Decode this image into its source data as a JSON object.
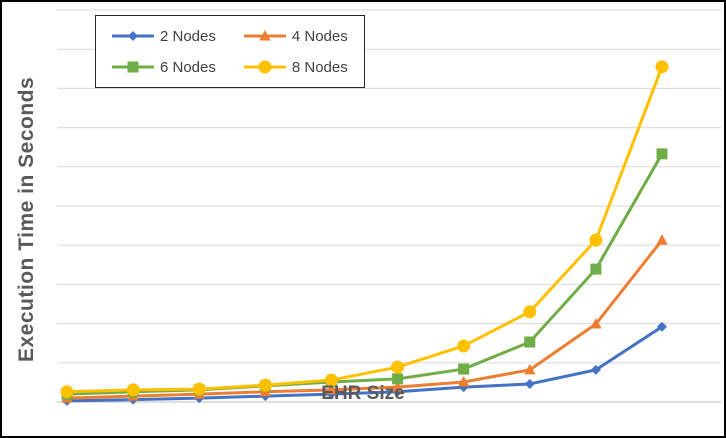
{
  "chart": {
    "ylabel": "Execution Time in Seconds",
    "xlabel": "EHR Size",
    "background": "#ffffff",
    "border_color": "#000000",
    "gridline_color": "#d9d9d9",
    "axisline_color": "#bfbfbf",
    "label_color": "#595959",
    "legend_text_color": "#404040"
  },
  "chart_data": {
    "type": "line",
    "title": "",
    "xlabel": "EHR Size",
    "ylabel": "Execution Time in Seconds",
    "x": [
      1,
      2,
      3,
      4,
      5,
      6,
      7,
      8,
      9,
      10
    ],
    "x_tick_labels_visible": false,
    "y_tick_labels_visible": false,
    "ylim": [
      0,
      100
    ],
    "grid": "horizontal",
    "grid_step": 10,
    "legend_position": "top-left",
    "series": [
      {
        "name": "2 Nodes",
        "color": "#4472C4",
        "marker": "diamond",
        "values": [
          0.3,
          0.6,
          1.0,
          1.5,
          2.0,
          2.6,
          3.8,
          4.6,
          8.2,
          19.2
        ]
      },
      {
        "name": "4 Nodes",
        "color": "#ED7D31",
        "marker": "triangle",
        "values": [
          1.0,
          1.5,
          2.0,
          2.6,
          3.1,
          3.8,
          5.1,
          8.2,
          19.9,
          41.3
        ]
      },
      {
        "name": "6 Nodes",
        "color": "#70AD47",
        "marker": "square",
        "values": [
          2.0,
          2.6,
          3.1,
          4.1,
          5.1,
          5.9,
          8.4,
          15.3,
          33.9,
          63.3
        ]
      },
      {
        "name": "8 Nodes",
        "color": "#FFC000",
        "marker": "circle",
        "values": [
          2.6,
          3.1,
          3.3,
          4.3,
          5.6,
          8.9,
          14.3,
          23.0,
          41.3,
          85.5
        ]
      }
    ]
  }
}
